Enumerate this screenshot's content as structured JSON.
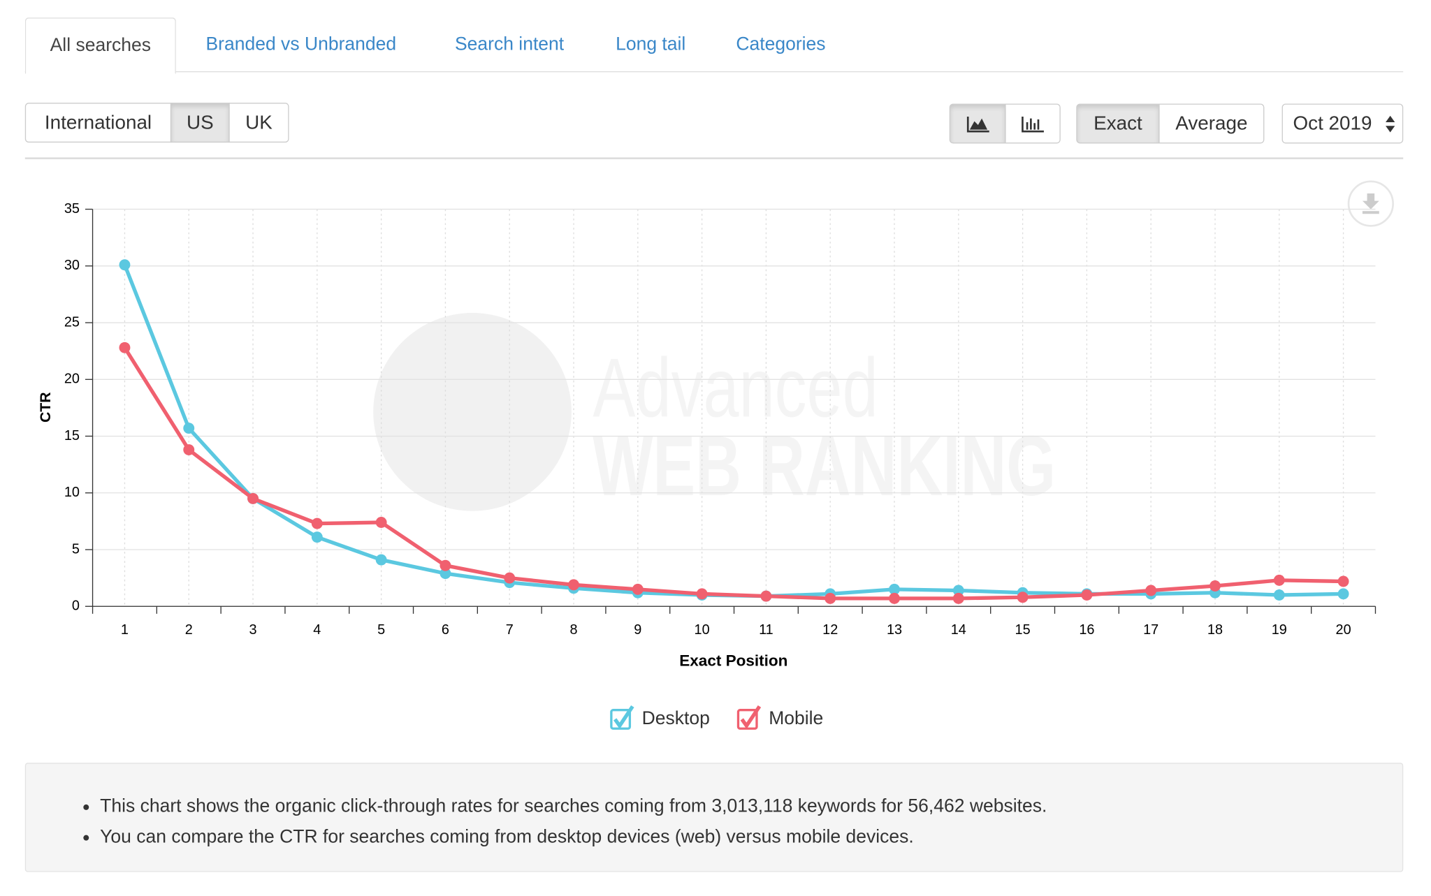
{
  "tabs": [
    "All searches",
    "Branded vs Unbranded",
    "Search intent",
    "Long tail",
    "Categories"
  ],
  "regions": [
    "International",
    "US",
    "UK"
  ],
  "modes": [
    "Exact",
    "Average"
  ],
  "date": "Oct 2019",
  "watermark": [
    "Advanced",
    "WEB RANKING"
  ],
  "chart_data": {
    "type": "line",
    "x_label": "Exact Position",
    "y_label": "CTR",
    "categories": [
      "1",
      "2",
      "3",
      "4",
      "5",
      "6",
      "7",
      "8",
      "9",
      "10",
      "11",
      "12",
      "13",
      "14",
      "15",
      "16",
      "17",
      "18",
      "19",
      "20"
    ],
    "ylim": [
      0,
      35
    ],
    "yticks": [
      0,
      5,
      10,
      15,
      20,
      25,
      30,
      35
    ],
    "grid": true,
    "legend": "bottom",
    "series": [
      {
        "name": "Desktop",
        "color": "#5bc8e0",
        "values": [
          30.1,
          15.7,
          9.5,
          6.1,
          4.1,
          2.9,
          2.1,
          1.6,
          1.2,
          1.0,
          0.9,
          1.1,
          1.5,
          1.4,
          1.2,
          1.1,
          1.1,
          1.2,
          1.0,
          1.1
        ]
      },
      {
        "name": "Mobile",
        "color": "#f0606f",
        "values": [
          22.8,
          13.8,
          9.5,
          7.3,
          7.4,
          3.6,
          2.5,
          1.9,
          1.5,
          1.1,
          0.9,
          0.7,
          0.7,
          0.7,
          0.8,
          1.0,
          1.4,
          1.8,
          2.3,
          2.2
        ]
      }
    ]
  },
  "notes": [
    "This chart shows the organic click-through rates for searches coming from 3,013,118 keywords for 56,462 websites.",
    "You can compare the CTR for searches coming from desktop devices (web) versus mobile devices."
  ]
}
